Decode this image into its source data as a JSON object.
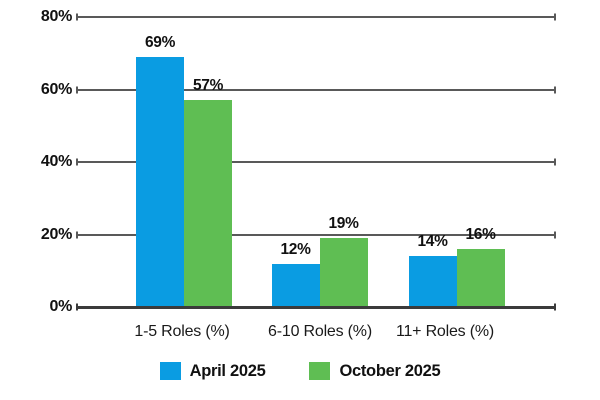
{
  "chart_data": {
    "type": "bar",
    "categories": [
      "1-5 Roles (%)",
      "6-10 Roles (%)",
      "11+ Roles (%)"
    ],
    "series": [
      {
        "name": "April 2025",
        "color": "#0A9CE2",
        "values": [
          69,
          12,
          14
        ]
      },
      {
        "name": "October 2025",
        "color": "#5FBE53",
        "values": [
          57,
          19,
          16
        ]
      }
    ],
    "data_labels": [
      "69%",
      "57%",
      "12%",
      "19%",
      "14%",
      "16%"
    ],
    "title": "",
    "xlabel": "",
    "ylabel": "",
    "ylim": [
      0,
      80
    ],
    "yticks": [
      0,
      20,
      40,
      60,
      80
    ],
    "ytick_labels": [
      "0%",
      "20%",
      "40%",
      "60%",
      "80%"
    ],
    "grid": true,
    "legend_position": "bottom"
  },
  "colors": {
    "grid": "#595959",
    "axis": "#3B3B3B",
    "text": "#111111",
    "background": "#FFFFFF"
  }
}
